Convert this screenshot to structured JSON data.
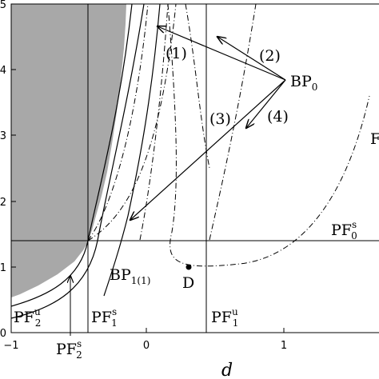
{
  "axes": {
    "xlabel": "d",
    "x_ticks": [
      "−1",
      "0",
      "1"
    ],
    "y_ticks": [
      "0",
      "1",
      "2",
      "3",
      "4",
      "5"
    ],
    "x_range": [
      -1,
      1.7
    ],
    "y_range": [
      0,
      5
    ]
  },
  "labels": {
    "bp0": {
      "main": "BP",
      "sub": "0"
    },
    "bp1": {
      "main": "BP",
      "sub": "1(1)"
    },
    "d_point": "D",
    "arrow1": "(1)",
    "arrow2": "(2)",
    "arrow3": "(3)",
    "arrow4": "(4)",
    "pf0s": {
      "main": "PF",
      "sub": "0",
      "sup": "s"
    },
    "pf1s": {
      "main": "PF",
      "sub": "1",
      "sup": "s"
    },
    "pf1u": {
      "main": "PF",
      "sub": "1",
      "sup": "u"
    },
    "pf2u": {
      "main": "PF",
      "sub": "2",
      "sup": "u"
    },
    "pf2s": {
      "main": "PF",
      "sub": "2",
      "sup": "s"
    },
    "edge_label": "F"
  },
  "colors": {
    "shade": "#a8a8a8",
    "line": "#000000"
  }
}
